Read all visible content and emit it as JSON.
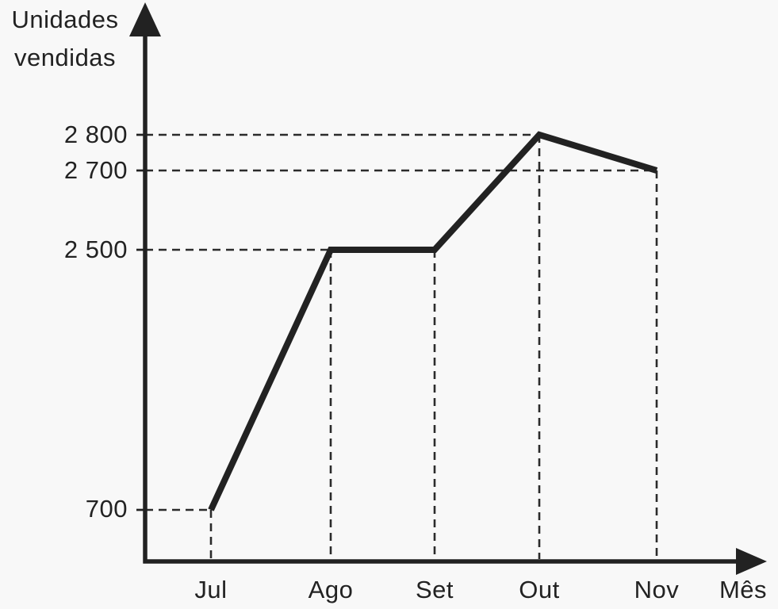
{
  "figure": {
    "background_color": "#f8f8f8",
    "ink_color": "#222222"
  },
  "chart_data": {
    "type": "line",
    "title": "",
    "ylabel_lines": [
      "Unidades",
      "vendidas"
    ],
    "xlabel": "Mês",
    "categories": [
      "Jul",
      "Ago",
      "Set",
      "Out",
      "Nov"
    ],
    "values": [
      700,
      2500,
      2500,
      2800,
      2700
    ],
    "y_ticks": [
      {
        "label": "2 800",
        "value": 2800
      },
      {
        "label": "2 700",
        "value": 2700
      },
      {
        "label": "2 500",
        "value": 2500
      },
      {
        "label": "700",
        "value": 700
      }
    ],
    "line_color": "#222222",
    "axis_color": "#222222",
    "guide_style": "dashed lines from both axes to every data point",
    "grid": false,
    "legend": false,
    "axis_arrows": true,
    "note_axis_scale": "schematic, not linear"
  }
}
